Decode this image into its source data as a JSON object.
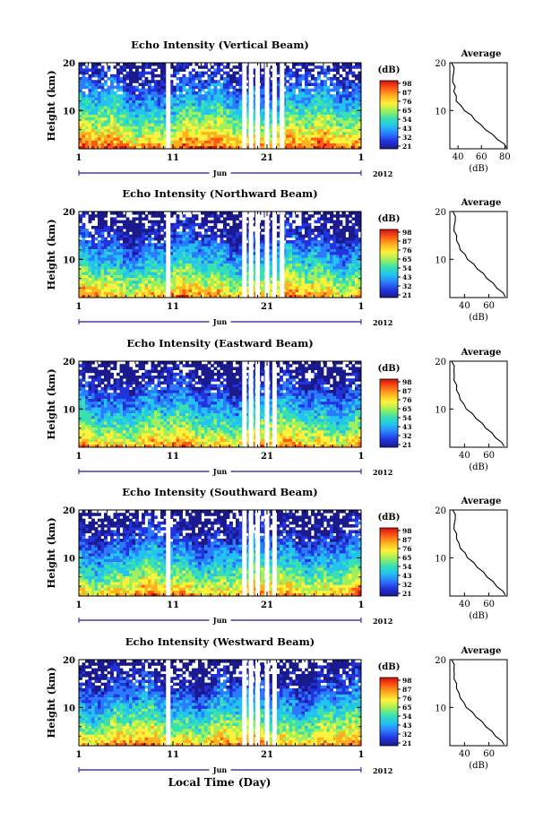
{
  "figure": {
    "xlabel": "Local Time (Day)",
    "colorbar_label": "(dB)",
    "colorbar_ticks": [
      "98",
      "87",
      "76",
      "65",
      "54",
      "43",
      "32",
      "21"
    ],
    "colormap": [
      "#1a1a8c",
      "#2233dd",
      "#2a7bff",
      "#22c3f0",
      "#39e0b0",
      "#9ff05a",
      "#fff23a",
      "#ffb020",
      "#ff5a14",
      "#d21010"
    ]
  },
  "chart_data": [
    {
      "type": "heatmap",
      "title": "Echo Intensity (Vertical Beam)",
      "ylabel": "Height (km)",
      "yticks": [
        "20",
        "10"
      ],
      "ylim": [
        2,
        20
      ],
      "xticks": [
        "1",
        "11",
        "21",
        "1"
      ],
      "month": "Jun",
      "year": "2012",
      "data_gaps_day": [
        10.5,
        18.6,
        19.3,
        20.0,
        21.0,
        21.8,
        22.6
      ],
      "average_profile": {
        "title": "Average",
        "xlabel": "(dB)",
        "xticks": [
          "40",
          "60",
          "80"
        ],
        "xlim": [
          33,
          82
        ],
        "ylim": [
          2,
          20
        ],
        "yticks": [
          "20",
          "10"
        ],
        "height_km": [
          2.2,
          3,
          4,
          5,
          6,
          7,
          8,
          9,
          10,
          11,
          12,
          13,
          14,
          15,
          16,
          17,
          18,
          19,
          20
        ],
        "db": [
          82,
          79,
          74,
          69,
          64,
          59,
          55,
          51,
          46,
          42,
          39,
          38,
          37,
          37,
          36,
          35,
          37,
          36,
          35
        ]
      }
    },
    {
      "type": "heatmap",
      "title": "Echo Intensity (Northward Beam)",
      "ylabel": "Height (km)",
      "yticks": [
        "20",
        "10"
      ],
      "ylim": [
        2,
        20
      ],
      "xticks": [
        "1",
        "11",
        "21",
        "1"
      ],
      "month": "Jun",
      "year": "2012",
      "data_gaps_day": [
        10.5,
        18.6,
        19.3,
        20.0,
        21.0,
        21.8,
        22.6
      ],
      "average_profile": {
        "title": "Average",
        "xlabel": "(dB)",
        "xticks": [
          "40",
          "60"
        ],
        "xlim": [
          28,
          75
        ],
        "ylim": [
          2,
          20
        ],
        "yticks": [
          "20",
          "10"
        ],
        "height_km": [
          2.2,
          3,
          4,
          5,
          6,
          7,
          8,
          9,
          10,
          11,
          12,
          13,
          14,
          15,
          16,
          17,
          18,
          19,
          20
        ],
        "db": [
          74,
          71,
          67,
          63,
          59,
          55,
          51,
          47,
          43,
          40,
          37,
          35,
          34,
          33,
          32,
          31,
          33,
          32,
          31
        ]
      }
    },
    {
      "type": "heatmap",
      "title": "Echo Intensity (Eastward Beam)",
      "ylabel": "Height (km)",
      "yticks": [
        "20",
        "10"
      ],
      "ylim": [
        2,
        20
      ],
      "xticks": [
        "1",
        "11",
        "21",
        "1"
      ],
      "month": "Jun",
      "year": "2012",
      "data_gaps_day": [
        18.6,
        19.3,
        20.0,
        21.0,
        21.8
      ],
      "average_profile": {
        "title": "Average",
        "xlabel": "(dB)",
        "xticks": [
          "40",
          "60"
        ],
        "xlim": [
          28,
          75
        ],
        "ylim": [
          2,
          20
        ],
        "yticks": [
          "20",
          "10"
        ],
        "height_km": [
          2.2,
          3,
          4,
          5,
          6,
          7,
          8,
          9,
          10,
          11,
          12,
          13,
          14,
          15,
          16,
          17,
          18,
          19,
          20
        ],
        "db": [
          73,
          70,
          66,
          62,
          58,
          54,
          50,
          46,
          42,
          39,
          37,
          35,
          34,
          33,
          32,
          31,
          32,
          31,
          30
        ]
      }
    },
    {
      "type": "heatmap",
      "title": "Echo Intensity (Southward Beam)",
      "ylabel": "Height (km)",
      "yticks": [
        "20",
        "10"
      ],
      "ylim": [
        2,
        20
      ],
      "xticks": [
        "1",
        "11",
        "21",
        "1"
      ],
      "month": "Jun",
      "year": "2012",
      "data_gaps_day": [
        10.5,
        18.6,
        19.3,
        20.0,
        21.0,
        21.8
      ],
      "average_profile": {
        "title": "Average",
        "xlabel": "(dB)",
        "xticks": [
          "40",
          "60"
        ],
        "xlim": [
          28,
          75
        ],
        "ylim": [
          2,
          20
        ],
        "yticks": [
          "20",
          "10"
        ],
        "height_km": [
          2.2,
          3,
          4,
          5,
          6,
          7,
          8,
          9,
          10,
          11,
          12,
          13,
          14,
          15,
          16,
          17,
          18,
          19,
          20
        ],
        "db": [
          74,
          71,
          67,
          63,
          59,
          55,
          51,
          47,
          43,
          40,
          37,
          35,
          34,
          33,
          32,
          31,
          33,
          32,
          31
        ]
      }
    },
    {
      "type": "heatmap",
      "title": "Echo Intensity (Westward Beam)",
      "ylabel": "Height (km)",
      "yticks": [
        "20",
        "10"
      ],
      "ylim": [
        2,
        20
      ],
      "xticks": [
        "1",
        "11",
        "21",
        "1"
      ],
      "month": "Jun",
      "year": "2012",
      "data_gaps_day": [
        10.5,
        18.6,
        19.3,
        20.0,
        21.0,
        21.8
      ],
      "average_profile": {
        "title": "Average",
        "xlabel": "(dB)",
        "xticks": [
          "40",
          "60"
        ],
        "xlim": [
          28,
          75
        ],
        "ylim": [
          2,
          20
        ],
        "yticks": [
          "20",
          "10"
        ],
        "height_km": [
          2.2,
          3,
          4,
          5,
          6,
          7,
          8,
          9,
          10,
          11,
          12,
          13,
          14,
          15,
          16,
          17,
          18,
          19,
          20
        ],
        "db": [
          73,
          70,
          66,
          62,
          58,
          54,
          50,
          46,
          42,
          39,
          37,
          35,
          34,
          33,
          32,
          31,
          32,
          31,
          30
        ]
      }
    }
  ]
}
